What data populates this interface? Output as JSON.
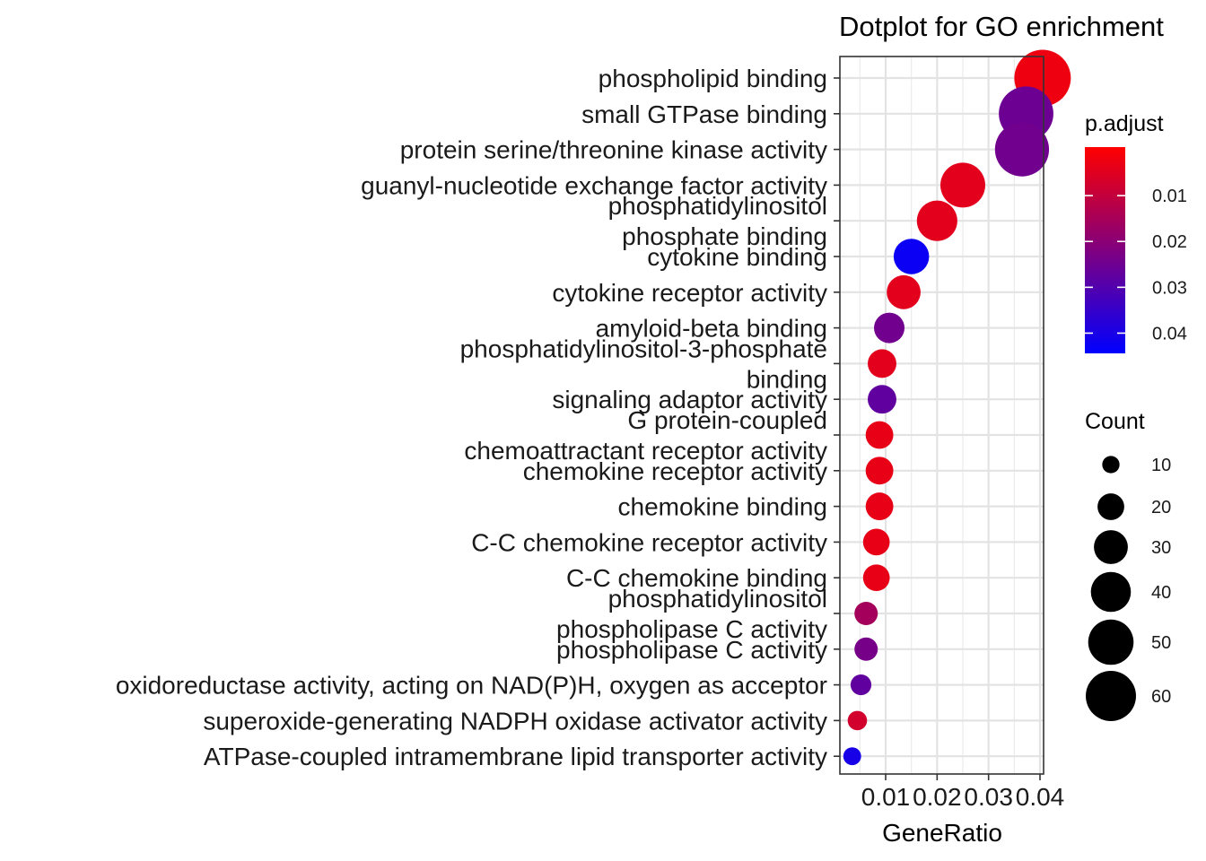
{
  "chart_data": {
    "type": "scatter",
    "title": "Dotplot for GO enrichment",
    "xlabel": "GeneRatio",
    "ylabel": "",
    "xlim": [
      0.0,
      0.04
    ],
    "x_ticks": [
      "0.01",
      "0.02",
      "0.03",
      "0.04"
    ],
    "x_tick_values": [
      0.01,
      0.02,
      0.03,
      0.04
    ],
    "grid": true,
    "legend_position": "right",
    "terms": [
      {
        "label": [
          "phospholipid binding"
        ],
        "gene_ratio": 0.0405,
        "count": 58,
        "p_adjust": 0.003
      },
      {
        "label": [
          "small GTPase binding"
        ],
        "gene_ratio": 0.0373,
        "count": 54,
        "p_adjust": 0.026
      },
      {
        "label": [
          "protein serine/threonine kinase activity"
        ],
        "gene_ratio": 0.0365,
        "count": 53,
        "p_adjust": 0.025
      },
      {
        "label": [
          "guanyl-nucleotide exchange factor activity"
        ],
        "gene_ratio": 0.025,
        "count": 36,
        "p_adjust": 0.005
      },
      {
        "label": [
          "phosphatidylinositol",
          "phosphate binding"
        ],
        "gene_ratio": 0.02,
        "count": 29,
        "p_adjust": 0.005
      },
      {
        "label": [
          "cytokine binding"
        ],
        "gene_ratio": 0.015,
        "count": 22,
        "p_adjust": 0.043
      },
      {
        "label": [
          "cytokine receptor activity"
        ],
        "gene_ratio": 0.0135,
        "count": 20,
        "p_adjust": 0.005
      },
      {
        "label": [
          "amyloid-beta binding"
        ],
        "gene_ratio": 0.0107,
        "count": 16,
        "p_adjust": 0.025
      },
      {
        "label": [
          "phosphatidylinositol-3-phosphate",
          "binding"
        ],
        "gene_ratio": 0.0093,
        "count": 14,
        "p_adjust": 0.005
      },
      {
        "label": [
          "signaling adaptor activity"
        ],
        "gene_ratio": 0.0093,
        "count": 14,
        "p_adjust": 0.028
      },
      {
        "label": [
          "G protein-coupled",
          "chemoattractant receptor activity"
        ],
        "gene_ratio": 0.0088,
        "count": 13,
        "p_adjust": 0.004
      },
      {
        "label": [
          "chemokine receptor activity"
        ],
        "gene_ratio": 0.0088,
        "count": 13,
        "p_adjust": 0.004
      },
      {
        "label": [
          "chemokine binding"
        ],
        "gene_ratio": 0.0088,
        "count": 13,
        "p_adjust": 0.004
      },
      {
        "label": [
          "C-C chemokine receptor activity"
        ],
        "gene_ratio": 0.0082,
        "count": 12,
        "p_adjust": 0.004
      },
      {
        "label": [
          "C-C chemokine binding"
        ],
        "gene_ratio": 0.0082,
        "count": 12,
        "p_adjust": 0.004
      },
      {
        "label": [
          "phosphatidylinositol",
          "phospholipase C activity"
        ],
        "gene_ratio": 0.0062,
        "count": 9,
        "p_adjust": 0.016
      },
      {
        "label": [
          "phospholipase C activity"
        ],
        "gene_ratio": 0.0062,
        "count": 9,
        "p_adjust": 0.024
      },
      {
        "label": [
          "oxidoreductase activity, acting on NAD(P)H, oxygen as acceptor"
        ],
        "gene_ratio": 0.0052,
        "count": 7,
        "p_adjust": 0.028
      },
      {
        "label": [
          "superoxide-generating NADPH oxidase activator activity"
        ],
        "gene_ratio": 0.0045,
        "count": 6,
        "p_adjust": 0.008
      },
      {
        "label": [
          "ATPase-coupled intramembrane lipid transporter activity"
        ],
        "gene_ratio": 0.0035,
        "count": 5,
        "p_adjust": 0.041
      }
    ],
    "color_legend": {
      "title": "p.adjust",
      "labels": [
        "0.01",
        "0.02",
        "0.03",
        "0.04"
      ],
      "values": [
        0.01,
        0.02,
        0.03,
        0.04
      ],
      "range": [
        0.0,
        0.045
      ],
      "low_color": "#ff0000",
      "high_color": "#0000ff"
    },
    "size_legend": {
      "title": "Count",
      "labels": [
        "10",
        "20",
        "30",
        "40",
        "50",
        "60"
      ],
      "values": [
        10,
        20,
        30,
        40,
        50,
        60
      ]
    }
  }
}
